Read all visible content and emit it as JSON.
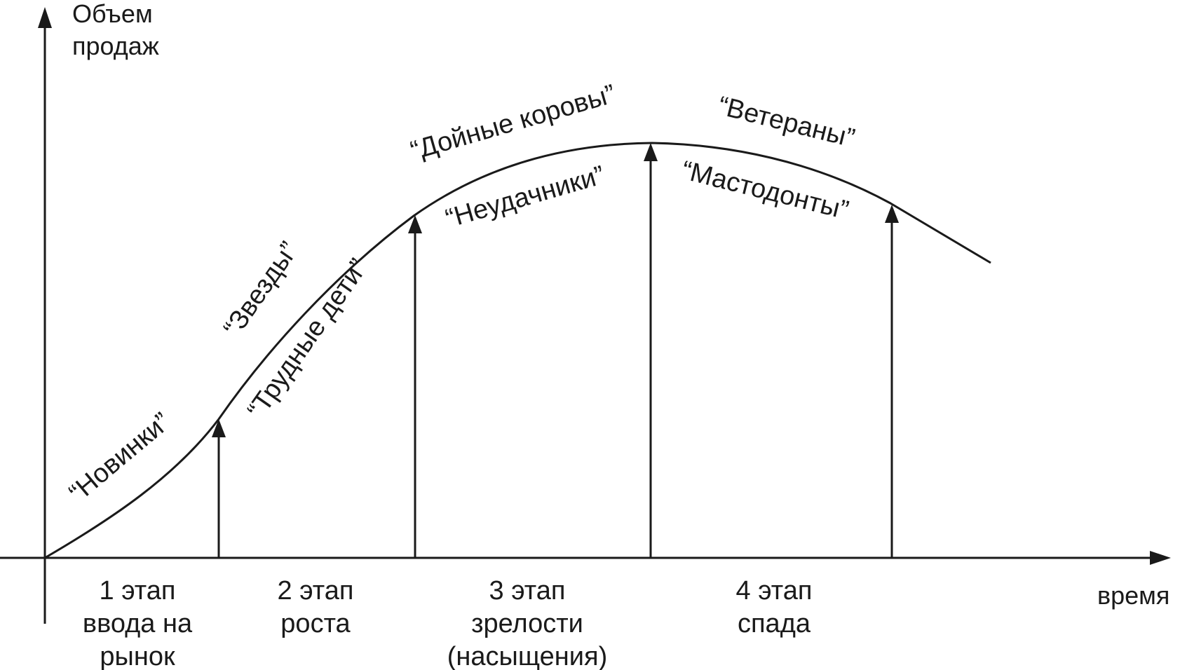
{
  "axes": {
    "y_label_line1": "Объем",
    "y_label_line2": "продаж",
    "x_label": "время"
  },
  "curve_labels": {
    "novinki": "“Новинки”",
    "zvezdy": "“Звезды”",
    "trudnye_deti": "“Трудные дети”",
    "doinye_korovy": "“Дойные коровы”",
    "neudachniki": "“Неудачники”",
    "veterany": "“Ветераны”",
    "mastodonty": "“Мастодонты”"
  },
  "stages": [
    {
      "lines": [
        "1 этап",
        "ввода на",
        "рынок"
      ]
    },
    {
      "lines": [
        "2 этап",
        "роста"
      ]
    },
    {
      "lines": [
        "3 этап",
        "зрелости",
        "(насыщения)"
      ]
    },
    {
      "lines": [
        "4 этап",
        "спада"
      ]
    }
  ],
  "colors": {
    "ink": "#1a1a1a",
    "background": "#ffffff"
  }
}
